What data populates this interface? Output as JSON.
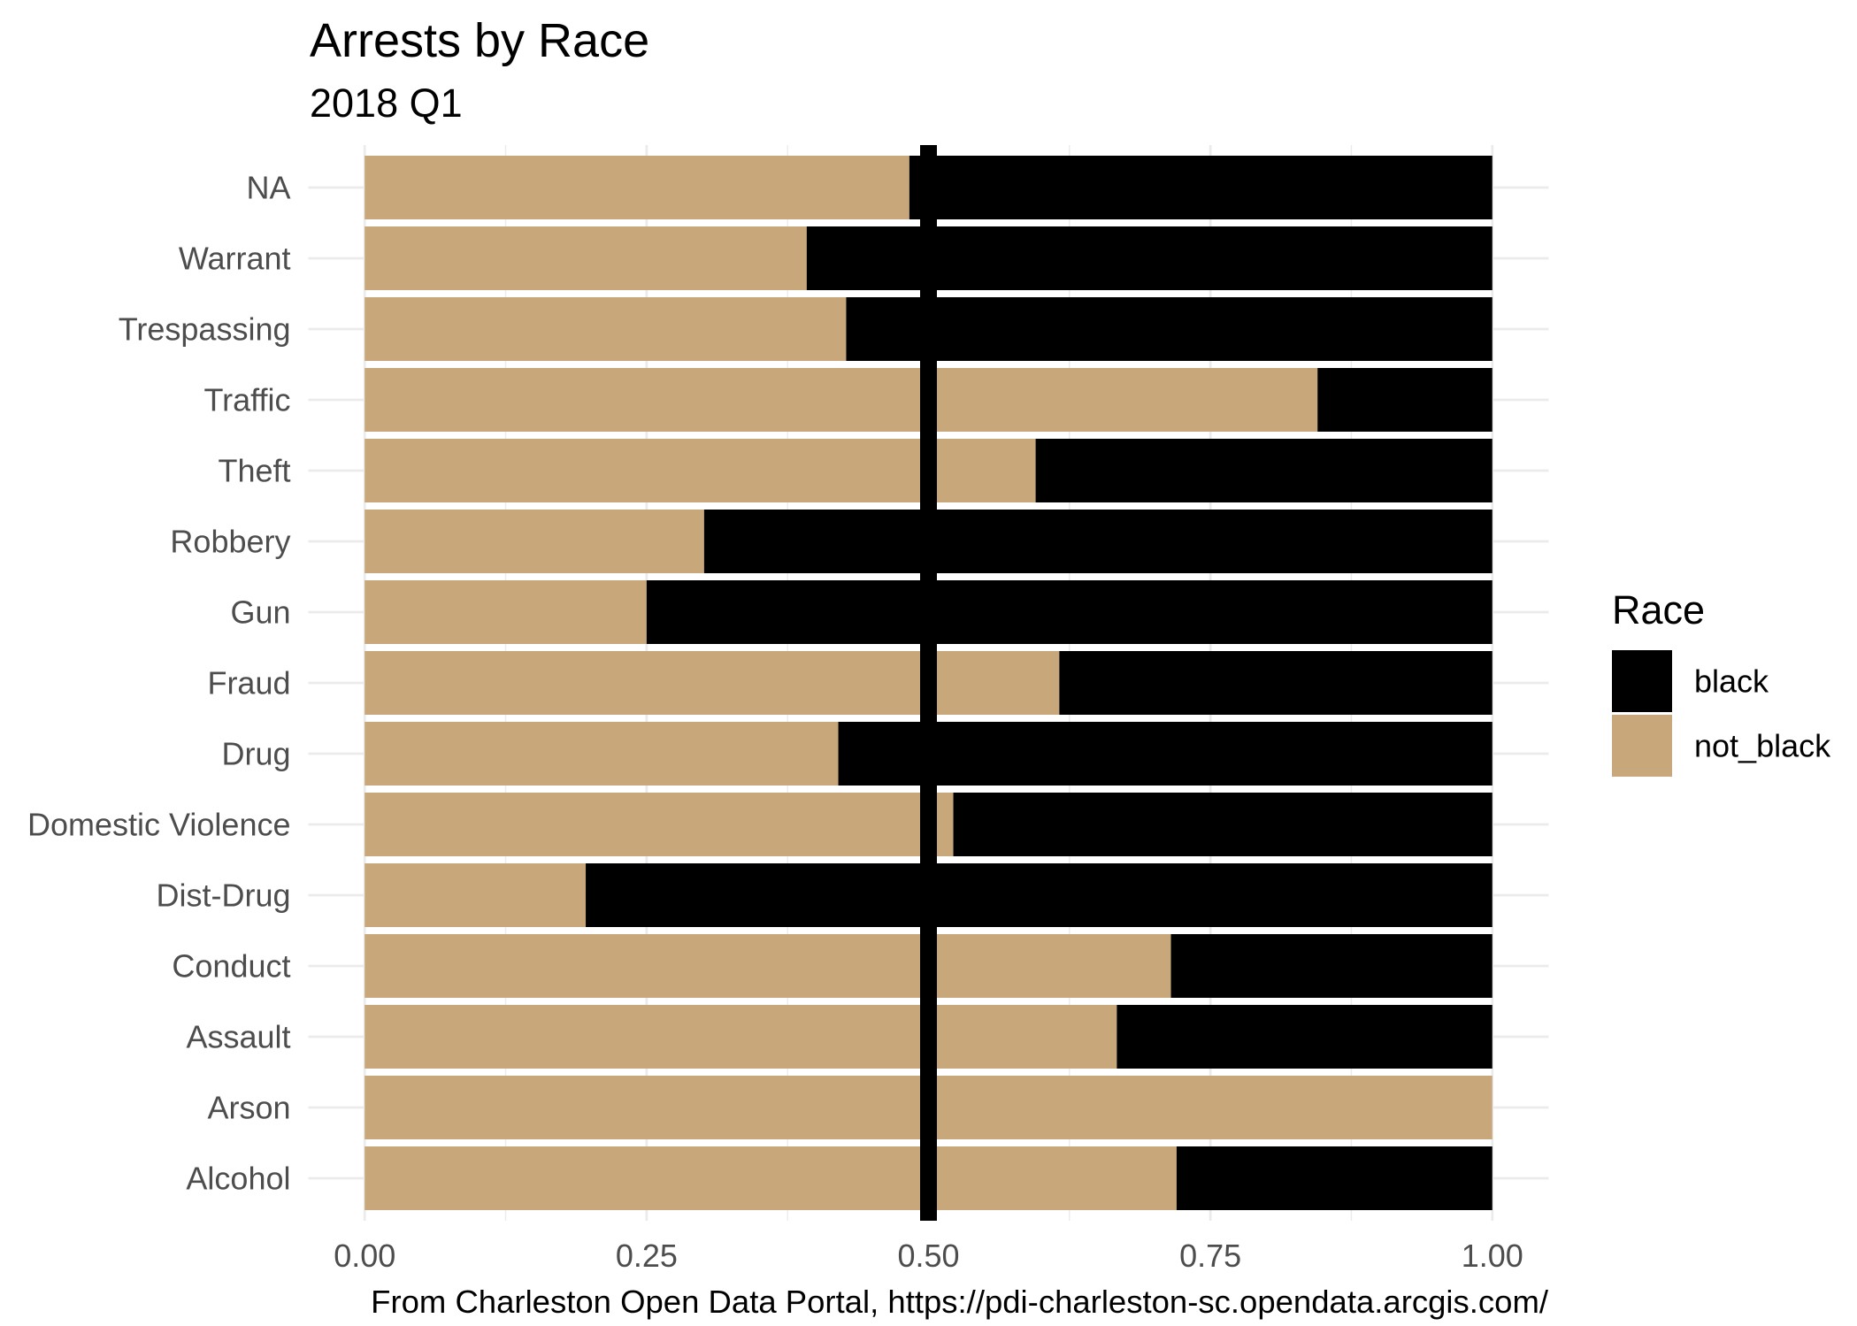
{
  "chart_data": {
    "type": "bar",
    "orientation": "horizontal",
    "stacked": true,
    "title": "Arrests by Race",
    "subtitle": "2018 Q1",
    "caption": "From Charleston Open Data Portal, https://pdi-charleston-sc.opendata.arcgis.com/",
    "categories": [
      "NA",
      "Warrant",
      "Trespassing",
      "Traffic",
      "Theft",
      "Robbery",
      "Gun",
      "Fraud",
      "Drug",
      "Domestic Violence",
      "Dist-Drug",
      "Conduct",
      "Assault",
      "Arson",
      "Alcohol"
    ],
    "series": [
      {
        "name": "black",
        "color": "#000000",
        "values": [
          0.517,
          0.608,
          0.573,
          0.155,
          0.405,
          0.699,
          0.75,
          0.384,
          0.58,
          0.478,
          0.804,
          0.285,
          0.333,
          0.0,
          0.28
        ]
      },
      {
        "name": "not_black",
        "color": "#C8A77B",
        "values": [
          0.483,
          0.392,
          0.427,
          0.845,
          0.595,
          0.301,
          0.25,
          0.616,
          0.42,
          0.522,
          0.196,
          0.715,
          0.667,
          1.0,
          0.72
        ]
      }
    ],
    "xlim": [
      0,
      1
    ],
    "x_ticks": [
      0,
      0.25,
      0.5,
      0.75,
      1
    ],
    "x_tick_labels": [
      "0.00",
      "0.25",
      "0.50",
      "0.75",
      "1.00"
    ],
    "reference_line": {
      "x": 0.5,
      "color": "#000000"
    },
    "legend": {
      "title": "Race",
      "position": "right"
    },
    "grid": true,
    "grid_color": "#EBEBEB"
  }
}
